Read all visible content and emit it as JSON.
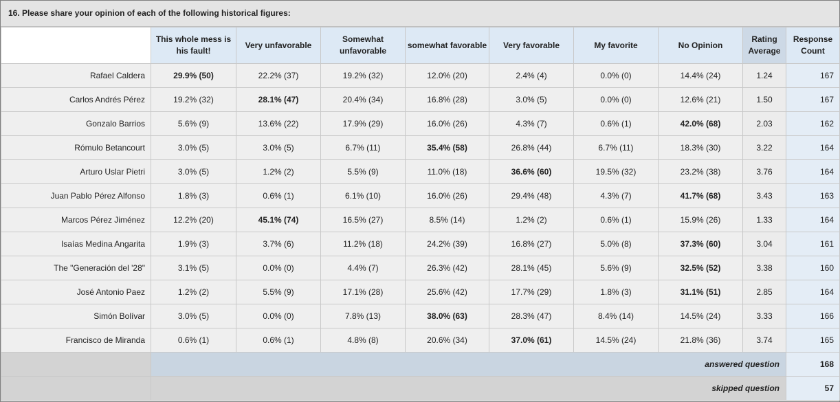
{
  "question": {
    "title": "16. Please share your opinion of each of the following historical figures:"
  },
  "columns": [
    "This whole mess is his fault!",
    "Very unfavorable",
    "Somewhat unfavorable",
    "somewhat favorable",
    "Very favorable",
    "My favorite",
    "No Opinion",
    "Rating Average",
    "Response Count"
  ],
  "rows": [
    {
      "label": "Rafael Caldera",
      "cells": [
        "29.9% (50)",
        "22.2% (37)",
        "19.2% (32)",
        "12.0% (20)",
        "2.4% (4)",
        "0.0% (0)",
        "14.4% (24)"
      ],
      "bold": [
        0
      ],
      "avg": "1.24",
      "count": "167"
    },
    {
      "label": "Carlos Andrés Pérez",
      "cells": [
        "19.2% (32)",
        "28.1% (47)",
        "20.4% (34)",
        "16.8% (28)",
        "3.0% (5)",
        "0.0% (0)",
        "12.6% (21)"
      ],
      "bold": [
        1
      ],
      "avg": "1.50",
      "count": "167"
    },
    {
      "label": "Gonzalo Barrios",
      "cells": [
        "5.6% (9)",
        "13.6% (22)",
        "17.9% (29)",
        "16.0% (26)",
        "4.3% (7)",
        "0.6% (1)",
        "42.0% (68)"
      ],
      "bold": [
        6
      ],
      "avg": "2.03",
      "count": "162"
    },
    {
      "label": "Rómulo Betancourt",
      "cells": [
        "3.0% (5)",
        "3.0% (5)",
        "6.7% (11)",
        "35.4% (58)",
        "26.8% (44)",
        "6.7% (11)",
        "18.3% (30)"
      ],
      "bold": [
        3
      ],
      "avg": "3.22",
      "count": "164"
    },
    {
      "label": "Arturo Uslar Pietri",
      "cells": [
        "3.0% (5)",
        "1.2% (2)",
        "5.5% (9)",
        "11.0% (18)",
        "36.6% (60)",
        "19.5% (32)",
        "23.2% (38)"
      ],
      "bold": [
        4
      ],
      "avg": "3.76",
      "count": "164"
    },
    {
      "label": "Juan Pablo Pérez Alfonso",
      "cells": [
        "1.8% (3)",
        "0.6% (1)",
        "6.1% (10)",
        "16.0% (26)",
        "29.4% (48)",
        "4.3% (7)",
        "41.7% (68)"
      ],
      "bold": [
        6
      ],
      "avg": "3.43",
      "count": "163"
    },
    {
      "label": "Marcos Pérez Jiménez",
      "cells": [
        "12.2% (20)",
        "45.1% (74)",
        "16.5% (27)",
        "8.5% (14)",
        "1.2% (2)",
        "0.6% (1)",
        "15.9% (26)"
      ],
      "bold": [
        1
      ],
      "avg": "1.33",
      "count": "164"
    },
    {
      "label": "Isaías Medina Angarita",
      "cells": [
        "1.9% (3)",
        "3.7% (6)",
        "11.2% (18)",
        "24.2% (39)",
        "16.8% (27)",
        "5.0% (8)",
        "37.3% (60)"
      ],
      "bold": [
        6
      ],
      "avg": "3.04",
      "count": "161"
    },
    {
      "label": "The \"Generación del '28\"",
      "cells": [
        "3.1% (5)",
        "0.0% (0)",
        "4.4% (7)",
        "26.3% (42)",
        "28.1% (45)",
        "5.6% (9)",
        "32.5% (52)"
      ],
      "bold": [
        6
      ],
      "avg": "3.38",
      "count": "160"
    },
    {
      "label": "José Antonio Paez",
      "cells": [
        "1.2% (2)",
        "5.5% (9)",
        "17.1% (28)",
        "25.6% (42)",
        "17.7% (29)",
        "1.8% (3)",
        "31.1% (51)"
      ],
      "bold": [
        6
      ],
      "avg": "2.85",
      "count": "164"
    },
    {
      "label": "Simón Bolívar",
      "cells": [
        "3.0% (5)",
        "0.0% (0)",
        "7.8% (13)",
        "38.0% (63)",
        "28.3% (47)",
        "8.4% (14)",
        "14.5% (24)"
      ],
      "bold": [
        3
      ],
      "avg": "3.33",
      "count": "166"
    },
    {
      "label": "Francisco de Miranda",
      "cells": [
        "0.6% (1)",
        "0.6% (1)",
        "4.8% (8)",
        "20.6% (34)",
        "37.0% (61)",
        "14.5% (24)",
        "21.8% (36)"
      ],
      "bold": [
        4
      ],
      "avg": "3.74",
      "count": "165"
    }
  ],
  "summary": {
    "answered_label": "answered question",
    "answered_count": "168",
    "skipped_label": "skipped question",
    "skipped_count": "57"
  }
}
